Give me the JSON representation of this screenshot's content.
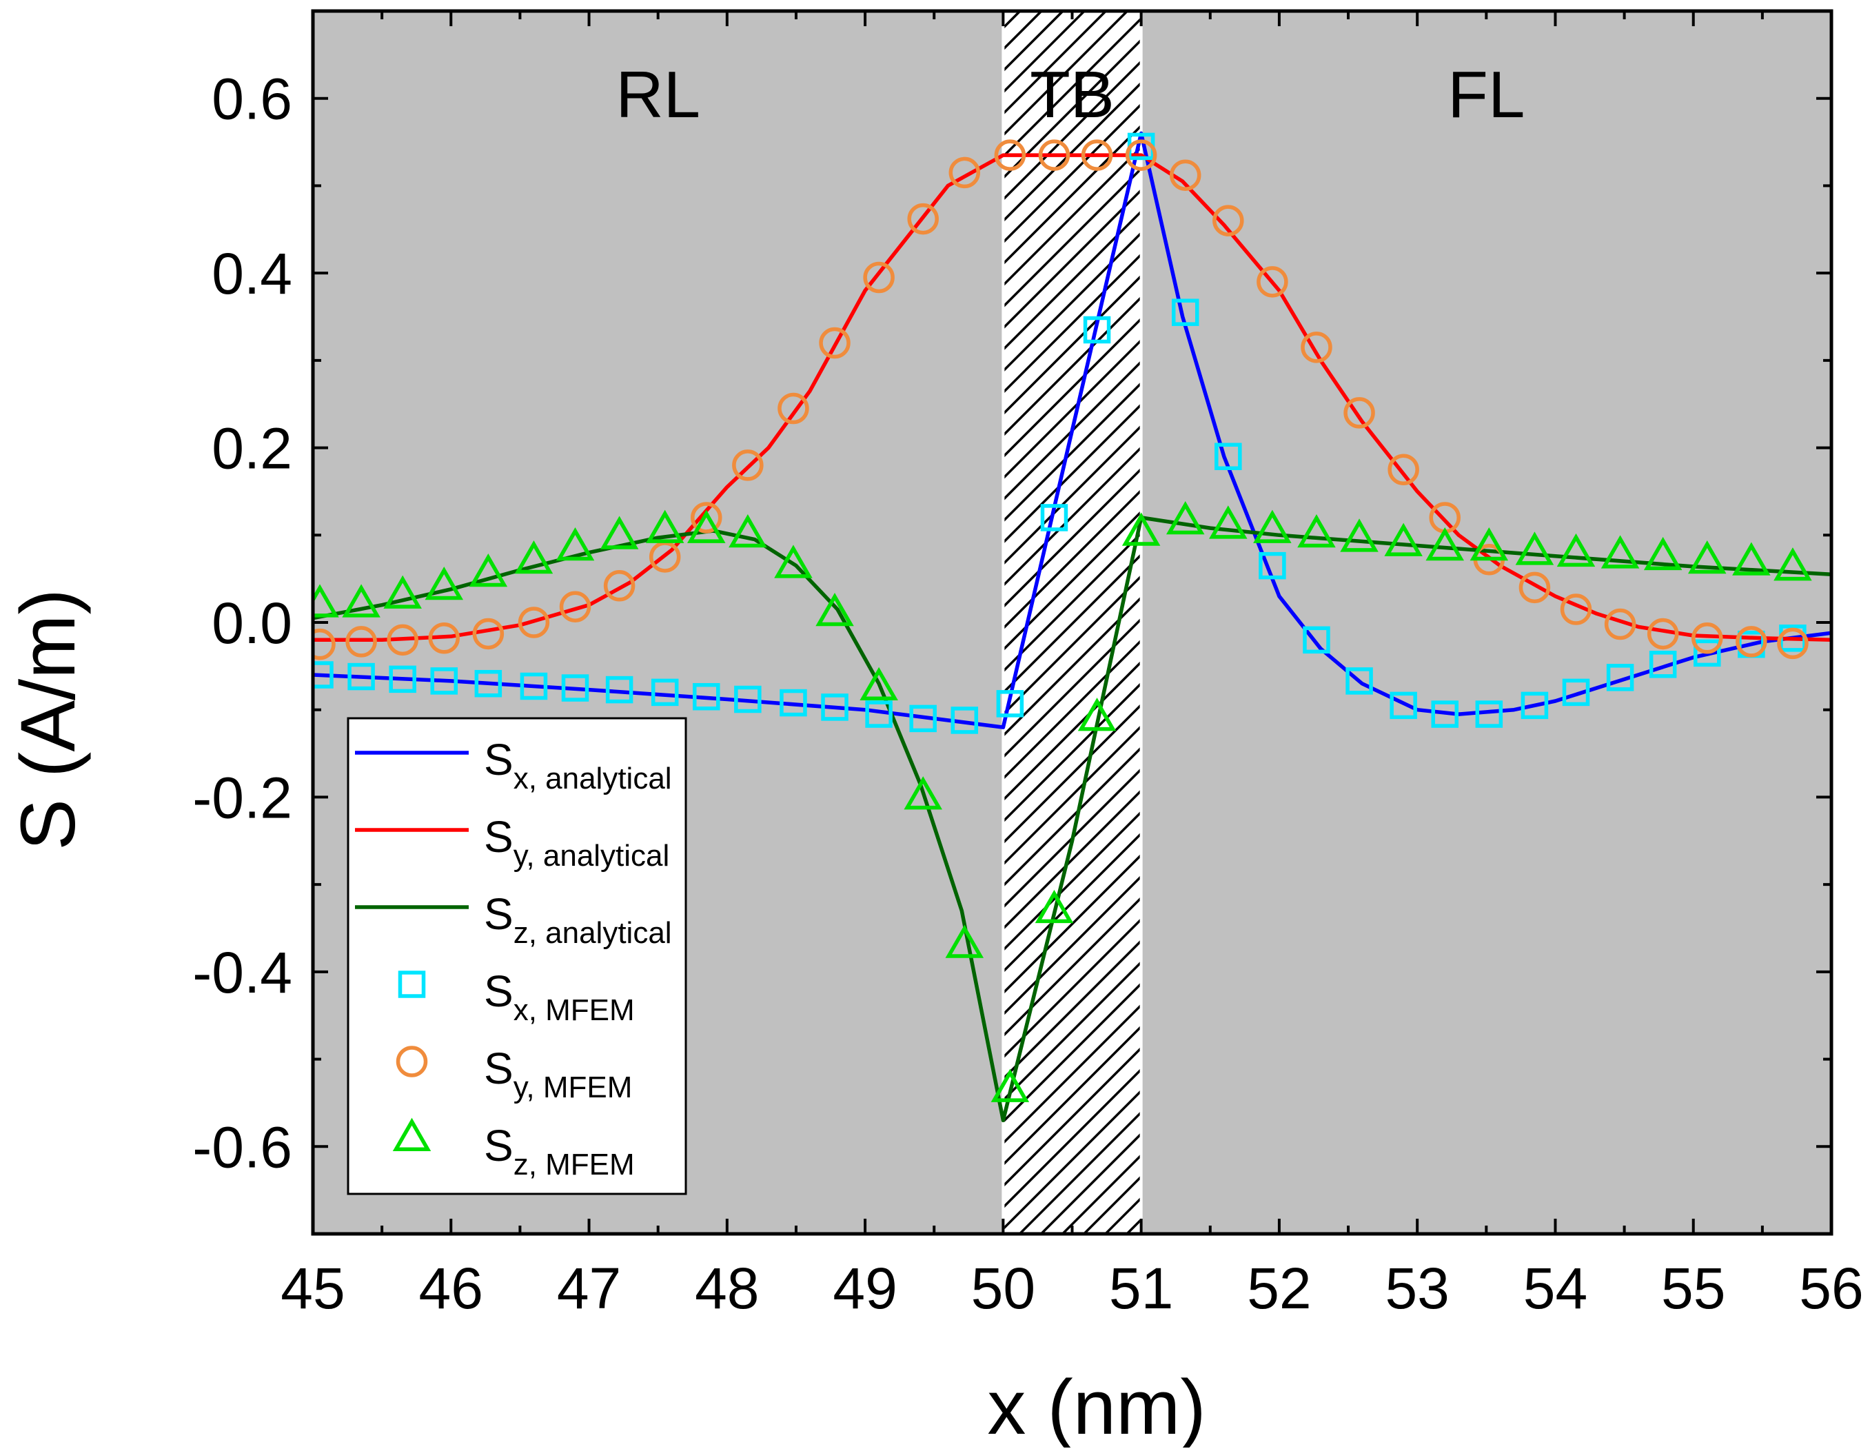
{
  "chart_data": {
    "type": "line",
    "title": "",
    "xlabel": "x (nm)",
    "ylabel": "S (A/m)",
    "xlim": [
      45,
      56
    ],
    "ylim": [
      -0.7,
      0.7
    ],
    "xticks": [
      45,
      46,
      47,
      48,
      49,
      50,
      51,
      52,
      53,
      54,
      55,
      56
    ],
    "xtick_labels": [
      "45",
      "46",
      "47",
      "48",
      "49",
      "50",
      "51",
      "52",
      "53",
      "54",
      "55",
      "56"
    ],
    "yticks": [
      -0.6,
      -0.4,
      -0.2,
      0.0,
      0.2,
      0.4,
      0.6
    ],
    "ytick_labels": [
      "-0.6",
      "-0.4",
      "-0.2",
      "0.0",
      "0.2",
      "0.4",
      "0.6"
    ],
    "grid": false,
    "legend_position": "bottom-left",
    "regions": [
      {
        "label": "RL",
        "x_range": [
          45,
          50
        ],
        "fill": "gray"
      },
      {
        "label": "TB",
        "x_range": [
          50,
          51
        ],
        "fill": "hatched"
      },
      {
        "label": "FL",
        "x_range": [
          51,
          56
        ],
        "fill": "gray"
      }
    ],
    "colors": {
      "background_region": "#c0c0c0",
      "sx_line": "#0000ff",
      "sy_line": "#ff0000",
      "sz_line": "#006400",
      "sx_marker": "#00e5ff",
      "sy_marker": "#f08c3c",
      "sz_marker": "#00e000"
    },
    "series": [
      {
        "name_main": "S",
        "name_sub": "x, analytical",
        "style": "line",
        "color": "#0000ff",
        "points": [
          [
            45,
            -0.06
          ],
          [
            46,
            -0.067
          ],
          [
            47,
            -0.077
          ],
          [
            48,
            -0.088
          ],
          [
            49,
            -0.1
          ],
          [
            50,
            -0.12
          ],
          [
            50.5,
            0.22
          ],
          [
            51,
            0.56
          ],
          [
            51.3,
            0.35
          ],
          [
            51.6,
            0.19
          ],
          [
            52,
            0.03
          ],
          [
            52.3,
            -0.03
          ],
          [
            52.6,
            -0.07
          ],
          [
            53,
            -0.1
          ],
          [
            53.3,
            -0.105
          ],
          [
            53.7,
            -0.1
          ],
          [
            54,
            -0.09
          ],
          [
            54.5,
            -0.065
          ],
          [
            55,
            -0.04
          ],
          [
            55.5,
            -0.022
          ],
          [
            56,
            -0.012
          ]
        ]
      },
      {
        "name_main": "S",
        "name_sub": "y, analytical",
        "style": "line",
        "color": "#ff0000",
        "points": [
          [
            45,
            -0.02
          ],
          [
            45.5,
            -0.02
          ],
          [
            46,
            -0.016
          ],
          [
            46.5,
            -0.003
          ],
          [
            47,
            0.02
          ],
          [
            47.3,
            0.046
          ],
          [
            47.6,
            0.083
          ],
          [
            48,
            0.155
          ],
          [
            48.3,
            0.2
          ],
          [
            48.6,
            0.265
          ],
          [
            49,
            0.38
          ],
          [
            49.3,
            0.44
          ],
          [
            49.6,
            0.5
          ],
          [
            50,
            0.535
          ],
          [
            51,
            0.535
          ],
          [
            51.3,
            0.505
          ],
          [
            51.6,
            0.455
          ],
          [
            52,
            0.38
          ],
          [
            52.3,
            0.3
          ],
          [
            52.6,
            0.23
          ],
          [
            53,
            0.15
          ],
          [
            53.3,
            0.1
          ],
          [
            53.6,
            0.065
          ],
          [
            54,
            0.03
          ],
          [
            54.3,
            0.01
          ],
          [
            54.6,
            -0.005
          ],
          [
            55,
            -0.015
          ],
          [
            55.5,
            -0.018
          ],
          [
            56,
            -0.02
          ]
        ]
      },
      {
        "name_main": "S",
        "name_sub": "z, analytical",
        "style": "line",
        "color": "#006400",
        "points": [
          [
            45,
            0.005
          ],
          [
            45.5,
            0.02
          ],
          [
            46,
            0.038
          ],
          [
            46.5,
            0.06
          ],
          [
            47,
            0.08
          ],
          [
            47.5,
            0.097
          ],
          [
            47.9,
            0.105
          ],
          [
            48.2,
            0.095
          ],
          [
            48.5,
            0.065
          ],
          [
            48.8,
            0.015
          ],
          [
            49.1,
            -0.07
          ],
          [
            49.4,
            -0.185
          ],
          [
            49.7,
            -0.33
          ],
          [
            50,
            -0.57
          ],
          [
            50.5,
            -0.25
          ],
          [
            51,
            0.12
          ],
          [
            51.5,
            0.108
          ],
          [
            52,
            0.1
          ],
          [
            53,
            0.088
          ],
          [
            54,
            0.076
          ],
          [
            55,
            0.064
          ],
          [
            56,
            0.055
          ]
        ]
      },
      {
        "name_main": "S",
        "name_sub": "x, MFEM",
        "style": "square",
        "color": "#00e5ff",
        "points": [
          [
            45.05,
            -0.06
          ],
          [
            45.35,
            -0.062
          ],
          [
            45.65,
            -0.065
          ],
          [
            45.95,
            -0.067
          ],
          [
            46.27,
            -0.07
          ],
          [
            46.6,
            -0.073
          ],
          [
            46.9,
            -0.075
          ],
          [
            47.22,
            -0.077
          ],
          [
            47.55,
            -0.08
          ],
          [
            47.85,
            -0.085
          ],
          [
            48.15,
            -0.088
          ],
          [
            48.48,
            -0.092
          ],
          [
            48.78,
            -0.097
          ],
          [
            49.1,
            -0.105
          ],
          [
            49.42,
            -0.11
          ],
          [
            49.72,
            -0.112
          ],
          [
            50.05,
            -0.093
          ],
          [
            50.37,
            0.12
          ],
          [
            50.68,
            0.335
          ],
          [
            51.0,
            0.545
          ],
          [
            51.32,
            0.355
          ],
          [
            51.63,
            0.19
          ],
          [
            51.95,
            0.065
          ],
          [
            52.27,
            -0.02
          ],
          [
            52.58,
            -0.067
          ],
          [
            52.9,
            -0.095
          ],
          [
            53.2,
            -0.105
          ],
          [
            53.52,
            -0.105
          ],
          [
            53.85,
            -0.095
          ],
          [
            54.15,
            -0.08
          ],
          [
            54.47,
            -0.063
          ],
          [
            54.78,
            -0.048
          ],
          [
            55.1,
            -0.035
          ],
          [
            55.42,
            -0.025
          ],
          [
            55.72,
            -0.018
          ]
        ]
      },
      {
        "name_main": "S",
        "name_sub": "y, MFEM",
        "style": "circle",
        "color": "#f08c3c",
        "points": [
          [
            45.05,
            -0.025
          ],
          [
            45.35,
            -0.022
          ],
          [
            45.65,
            -0.02
          ],
          [
            45.95,
            -0.018
          ],
          [
            46.27,
            -0.013
          ],
          [
            46.6,
            0.0
          ],
          [
            46.9,
            0.018
          ],
          [
            47.22,
            0.042
          ],
          [
            47.55,
            0.075
          ],
          [
            47.85,
            0.12
          ],
          [
            48.15,
            0.18
          ],
          [
            48.48,
            0.245
          ],
          [
            48.78,
            0.32
          ],
          [
            49.1,
            0.395
          ],
          [
            49.42,
            0.462
          ],
          [
            49.72,
            0.515
          ],
          [
            50.05,
            0.535
          ],
          [
            50.37,
            0.535
          ],
          [
            50.68,
            0.535
          ],
          [
            51.0,
            0.535
          ],
          [
            51.32,
            0.512
          ],
          [
            51.63,
            0.46
          ],
          [
            51.95,
            0.39
          ],
          [
            52.27,
            0.315
          ],
          [
            52.58,
            0.24
          ],
          [
            52.9,
            0.175
          ],
          [
            53.2,
            0.12
          ],
          [
            53.52,
            0.072
          ],
          [
            53.85,
            0.04
          ],
          [
            54.15,
            0.015
          ],
          [
            54.47,
            -0.002
          ],
          [
            54.78,
            -0.013
          ],
          [
            55.1,
            -0.018
          ],
          [
            55.42,
            -0.022
          ],
          [
            55.72,
            -0.024
          ]
        ]
      },
      {
        "name_main": "S",
        "name_sub": "z, MFEM",
        "style": "triangle",
        "color": "#00e000",
        "points": [
          [
            45.05,
            0.02
          ],
          [
            45.35,
            0.02
          ],
          [
            45.65,
            0.03
          ],
          [
            45.95,
            0.04
          ],
          [
            46.27,
            0.055
          ],
          [
            46.6,
            0.07
          ],
          [
            46.9,
            0.085
          ],
          [
            47.22,
            0.098
          ],
          [
            47.55,
            0.105
          ],
          [
            47.85,
            0.105
          ],
          [
            48.15,
            0.1
          ],
          [
            48.48,
            0.065
          ],
          [
            48.78,
            0.01
          ],
          [
            49.1,
            -0.075
          ],
          [
            49.42,
            -0.2
          ],
          [
            49.72,
            -0.37
          ],
          [
            50.05,
            -0.535
          ],
          [
            50.37,
            -0.33
          ],
          [
            50.68,
            -0.11
          ],
          [
            51.0,
            0.102
          ],
          [
            51.32,
            0.115
          ],
          [
            51.63,
            0.11
          ],
          [
            51.95,
            0.105
          ],
          [
            52.27,
            0.1
          ],
          [
            52.58,
            0.095
          ],
          [
            52.9,
            0.09
          ],
          [
            53.2,
            0.085
          ],
          [
            53.52,
            0.085
          ],
          [
            53.85,
            0.08
          ],
          [
            54.15,
            0.078
          ],
          [
            54.47,
            0.076
          ],
          [
            54.78,
            0.074
          ],
          [
            55.1,
            0.07
          ],
          [
            55.42,
            0.068
          ],
          [
            55.72,
            0.062
          ]
        ]
      }
    ]
  }
}
